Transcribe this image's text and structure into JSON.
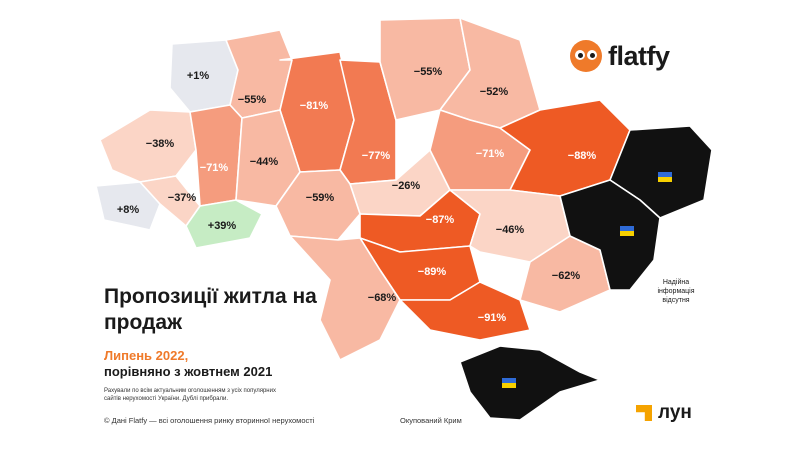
{
  "title": "Пропозиції житла на продаж",
  "period": "Липень 2022,",
  "comparison": "порівняно з жовтнем 2021",
  "methodology": "Рахували по всім актуальним оголошенням з усіх популярних сайтів нерухомості України. Дублі прибрали.",
  "footer": "© Дані Flatfy — всі оголошення ринку вторинної нерухомості",
  "crimea_caption": "Окупований Крим",
  "no_data_caption": "Надійна інформація відсутня",
  "logos": {
    "flatfy": "flatfy",
    "lun": "лун"
  },
  "colors": {
    "very_dark": "#ee5a24",
    "dark": "#f27a52",
    "medium": "#f59c7e",
    "light": "#f8b9a3",
    "pale": "#fbd5c6",
    "grey": "#e6e8ee",
    "green": "#c6ecc4",
    "occupied": "#111111"
  },
  "regions": [
    {
      "label": "+1%",
      "tone": "grey"
    },
    {
      "label": "−55%",
      "tone": "light"
    },
    {
      "label": "−81%",
      "tone": "dark"
    },
    {
      "label": "−77%",
      "tone": "dark"
    },
    {
      "label": "−55%",
      "tone": "light"
    },
    {
      "label": "−52%",
      "tone": "light"
    },
    {
      "label": "−38%",
      "tone": "pale"
    },
    {
      "label": "−71%",
      "tone": "medium"
    },
    {
      "label": "−44%",
      "tone": "light"
    },
    {
      "label": "−26%",
      "tone": "pale"
    },
    {
      "label": "−71%",
      "tone": "medium"
    },
    {
      "label": "−88%",
      "tone": "very_dark"
    },
    {
      "label": "+8%",
      "tone": "grey"
    },
    {
      "label": "−37%",
      "tone": "pale"
    },
    {
      "label": "−59%",
      "tone": "light"
    },
    {
      "label": "+39%",
      "tone": "green"
    },
    {
      "label": "−87%",
      "tone": "very_dark"
    },
    {
      "label": "−46%",
      "tone": "pale"
    },
    {
      "label": "−89%",
      "tone": "very_dark"
    },
    {
      "label": "−62%",
      "tone": "light"
    },
    {
      "label": "−68%",
      "tone": "light"
    },
    {
      "label": "−91%",
      "tone": "very_dark"
    }
  ],
  "occupied": [
    "Luhansk",
    "Donetsk",
    "Crimea"
  ]
}
